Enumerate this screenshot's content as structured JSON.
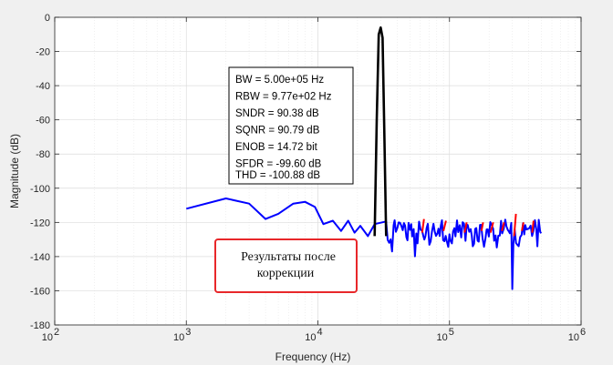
{
  "chart_data": {
    "type": "line",
    "xlabel": "Frequency (Hz)",
    "ylabel": "Magnitude (dB)",
    "x_scale": "log",
    "xlim": [
      100,
      1000000
    ],
    "ylim": [
      -180,
      0
    ],
    "x_ticks": [
      {
        "value": 100,
        "base": "10",
        "exp": "2"
      },
      {
        "value": 1000,
        "base": "10",
        "exp": "3"
      },
      {
        "value": 10000,
        "base": "10",
        "exp": "4"
      },
      {
        "value": 100000,
        "base": "10",
        "exp": "5"
      },
      {
        "value": 1000000,
        "base": "10",
        "exp": "6"
      }
    ],
    "y_ticks": [
      0,
      -20,
      -40,
      -60,
      -80,
      -100,
      -120,
      -140,
      -160,
      -180
    ],
    "grid": true,
    "minor_grid": true,
    "series": [
      {
        "color": "#0000ff",
        "x": [
          1000,
          2000,
          3000,
          4000,
          5000,
          6500,
          8000,
          9500,
          11000,
          13000,
          15000,
          17000,
          19000,
          21000,
          24000,
          27000
        ],
        "y": [
          -112,
          -106,
          -109,
          -118,
          -115,
          -109,
          -108,
          -111,
          -121,
          -119,
          -125,
          -119,
          -126,
          -122,
          -128,
          -121
        ]
      },
      {
        "color": "#ff0000",
        "x": [
          62000,
          64000,
          90000,
          94000,
          130000,
          135000,
          175000,
          180000,
          205000,
          215000,
          250000,
          260000,
          310000,
          320000,
          355000,
          365000,
          425000,
          435000
        ],
        "y": [
          -126,
          -118,
          -125,
          -119,
          -126,
          -120,
          -125,
          -120,
          -126,
          -120,
          -125,
          -120,
          -128,
          -115,
          -125,
          -120,
          -126,
          -119
        ]
      },
      {
        "color": "#000000",
        "x": [
          27000,
          28000,
          29000,
          30000,
          31000,
          32000,
          33000
        ],
        "y": [
          -128,
          -60,
          -10,
          -6,
          -12,
          -70,
          -128
        ]
      }
    ]
  },
  "stats_box": [
    "BW = 5.00e+05 Hz",
    "RBW = 9.77e+02 Hz",
    "SNDR = 90.38 dB",
    "SQNR = 90.79 dB",
    "ENOB = 14.72 bit",
    "SFDR = -99.60 dB",
    "THD = -100.88 dB"
  ],
  "annotation": {
    "lines": [
      "Результаты после",
      "коррекции"
    ],
    "border_color": "#e8272a"
  }
}
